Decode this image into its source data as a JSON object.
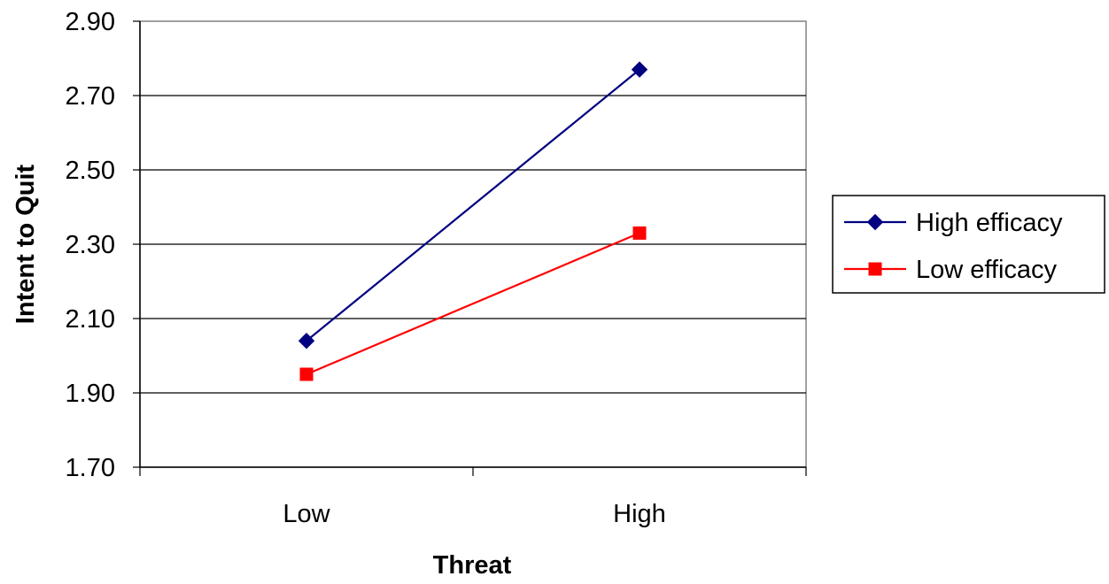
{
  "chart_data": {
    "type": "line",
    "title": "",
    "xlabel": "Threat",
    "ylabel": "Intent to Quit",
    "categories": [
      "Low",
      "High"
    ],
    "ylim": [
      1.7,
      2.9
    ],
    "yticks": [
      "1.70",
      "1.90",
      "2.10",
      "2.30",
      "2.50",
      "2.70",
      "2.90"
    ],
    "grid": "horizontal",
    "legend_position": "right",
    "series": [
      {
        "name": "High efficacy",
        "values": [
          2.04,
          2.77
        ],
        "color": "#000080",
        "marker": "diamond"
      },
      {
        "name": "Low efficacy",
        "values": [
          1.95,
          2.33
        ],
        "color": "#ff0000",
        "marker": "square"
      }
    ]
  }
}
